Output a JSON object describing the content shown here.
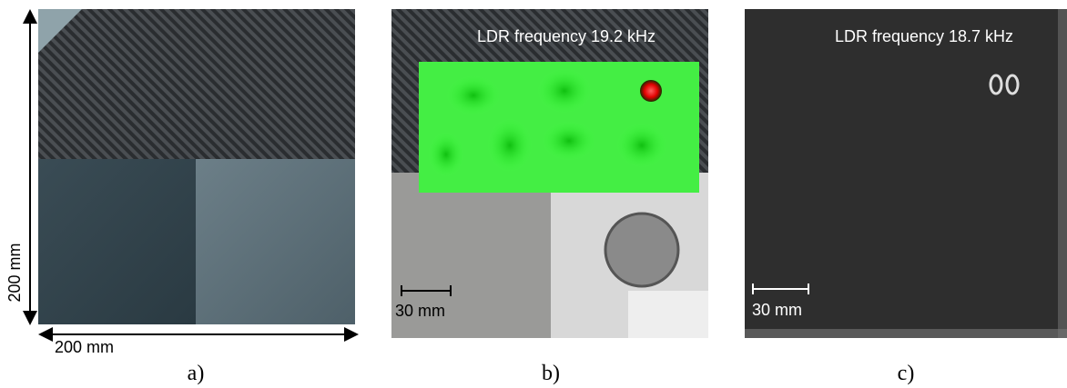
{
  "panels": [
    {
      "label": "a)",
      "annotations": [
        "200 mm",
        "200 mm"
      ]
    },
    {
      "label": "b)",
      "annotations": [
        "LDR frequency 19.2 kHz",
        "30 mm"
      ]
    },
    {
      "label": "c)",
      "annotations": [
        "LDR frequency 18.7 kHz",
        "30 mm"
      ]
    }
  ]
}
